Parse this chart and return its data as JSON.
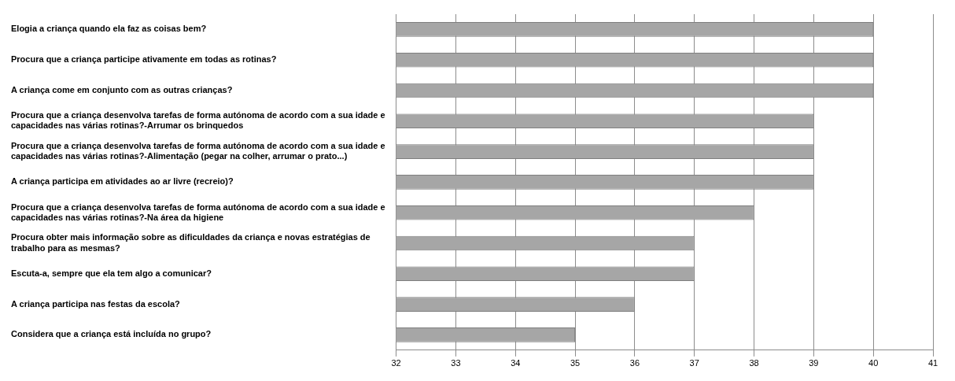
{
  "chart_data": {
    "type": "bar",
    "orientation": "horizontal",
    "categories": [
      "Elogia a criança quando ela faz as coisas bem?",
      "Procura que a criança participe ativamente em todas as rotinas?",
      "A criança come em conjunto com as outras crianças?",
      "Procura que a criança desenvolva tarefas de forma autónoma de acordo com a sua idade e capacidades nas várias rotinas?-Arrumar os brinquedos",
      "Procura que a criança desenvolva tarefas de forma autónoma de acordo com a sua idade e capacidades nas várias rotinas?-Alimentação (pegar na colher, arrumar o prato...)",
      "A criança participa em atividades ao ar livre (recreio)?",
      "Procura que a criança desenvolva tarefas de forma autónoma de acordo com a sua idade e capacidades nas várias rotinas?-Na área da higiene",
      "Procura obter mais informação sobre as dificuldades da criança e novas estratégias de trabalho para as mesmas?",
      "Escuta-a, sempre que ela tem algo a comunicar?",
      "A criança participa nas festas da escola?",
      "Considera que a criança está incluída no grupo?"
    ],
    "values": [
      40,
      40,
      40,
      39,
      39,
      39,
      38,
      37,
      37,
      36,
      35
    ],
    "color": "#a6a6a6",
    "xlim": [
      32,
      41
    ],
    "xticks": [
      32,
      33,
      34,
      35,
      36,
      37,
      38,
      39,
      40,
      41
    ],
    "grid": "x"
  }
}
